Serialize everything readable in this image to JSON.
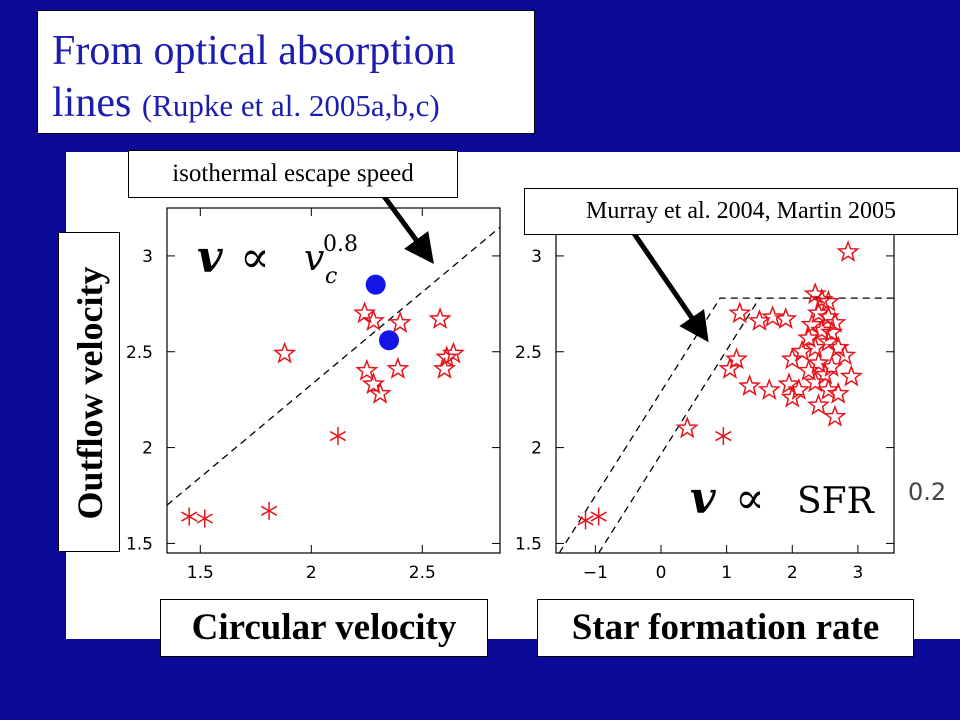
{
  "slide": {
    "title_main": "From optical absorption",
    "title_line2_main": "lines",
    "title_line2_ref": "(Rupke et al. 2005a,b,c)",
    "bg_color": "#0a0a96",
    "title_color": "#1c1cb0"
  },
  "annotations": {
    "escape_speed": "isothermal escape speed",
    "murray_martin": "Murray et al. 2004, Martin 2005"
  },
  "axis_labels": {
    "y": "Outflow velocity",
    "x_left": "Circular velocity",
    "x_right": "Star formation rate"
  },
  "formulas": {
    "left": {
      "lhs": "v",
      "prop": "∝",
      "var": "v",
      "sub": "c",
      "exp": "0.8"
    },
    "right": {
      "lhs": "v",
      "prop": "∝",
      "var": "SFR",
      "exp": "0.2"
    }
  },
  "chart_data": [
    {
      "type": "scatter",
      "title": "",
      "xlabel": "Circular velocity",
      "ylabel": "Outflow velocity",
      "xlim": [
        1.35,
        2.85
      ],
      "ylim": [
        1.45,
        3.25
      ],
      "xticks": [
        "1.5",
        "2",
        "2.5"
      ],
      "yticks": [
        "1.5",
        "2",
        "2.5",
        "3"
      ],
      "marker_color": "#e8141c",
      "fit_color": "#1414e6",
      "series": [
        {
          "marker": "star",
          "points": [
            [
              1.88,
              2.49
            ],
            [
              2.24,
              2.7
            ],
            [
              2.28,
              2.66
            ],
            [
              2.4,
              2.65
            ],
            [
              2.58,
              2.67
            ],
            [
              2.25,
              2.4
            ],
            [
              2.28,
              2.33
            ],
            [
              2.39,
              2.41
            ],
            [
              2.31,
              2.28
            ],
            [
              2.6,
              2.41
            ],
            [
              2.61,
              2.47
            ],
            [
              2.64,
              2.49
            ]
          ]
        },
        {
          "marker": "asterisk",
          "points": [
            [
              1.45,
              1.64
            ],
            [
              1.52,
              1.63
            ],
            [
              1.81,
              1.67
            ],
            [
              2.12,
              2.06
            ]
          ]
        },
        {
          "marker": "filled-circle",
          "points": [
            [
              2.29,
              2.85
            ],
            [
              2.35,
              2.56
            ]
          ]
        }
      ],
      "reference_line": {
        "style": "dashed",
        "points": [
          [
            1.35,
            1.7
          ],
          [
            2.85,
            3.15
          ]
        ]
      }
    },
    {
      "type": "scatter",
      "title": "",
      "xlabel": "Star formation rate",
      "ylabel": "Outflow velocity",
      "xlim": [
        -1.6,
        3.55
      ],
      "ylim": [
        1.45,
        3.25
      ],
      "xticks": [
        "−1",
        "0",
        "1",
        "2",
        "3"
      ],
      "yticks": [
        "1.5",
        "2",
        "2.5",
        "3"
      ],
      "marker_color": "#e8141c",
      "series": [
        {
          "marker": "star",
          "points": [
            [
              2.85,
              3.02
            ],
            [
              2.35,
              2.8
            ],
            [
              2.45,
              2.77
            ],
            [
              2.55,
              2.76
            ],
            [
              2.4,
              2.7
            ],
            [
              2.55,
              2.68
            ],
            [
              2.65,
              2.65
            ],
            [
              2.3,
              2.64
            ],
            [
              2.45,
              2.61
            ],
            [
              2.6,
              2.6
            ],
            [
              2.25,
              2.57
            ],
            [
              2.55,
              2.55
            ],
            [
              2.35,
              2.52
            ],
            [
              2.7,
              2.52
            ],
            [
              2.15,
              2.5
            ],
            [
              2.8,
              2.48
            ],
            [
              2.0,
              2.46
            ],
            [
              2.4,
              2.44
            ],
            [
              2.6,
              2.42
            ],
            [
              2.25,
              2.4
            ],
            [
              2.5,
              2.38
            ],
            [
              2.9,
              2.37
            ],
            [
              2.35,
              2.34
            ],
            [
              2.1,
              2.3
            ],
            [
              2.55,
              2.3
            ],
            [
              2.7,
              2.28
            ],
            [
              2.0,
              2.26
            ],
            [
              2.4,
              2.22
            ],
            [
              2.65,
              2.16
            ],
            [
              1.2,
              2.7
            ],
            [
              1.5,
              2.66
            ],
            [
              1.7,
              2.68
            ],
            [
              1.9,
              2.67
            ],
            [
              1.15,
              2.46
            ],
            [
              1.05,
              2.41
            ],
            [
              1.35,
              2.32
            ],
            [
              1.65,
              2.3
            ],
            [
              1.95,
              2.33
            ],
            [
              0.4,
              2.1
            ]
          ]
        },
        {
          "marker": "asterisk",
          "points": [
            [
              -1.15,
              1.62
            ],
            [
              -0.95,
              1.64
            ],
            [
              0.95,
              2.06
            ]
          ]
        }
      ],
      "reference_lines": [
        {
          "style": "dashed",
          "points": [
            [
              -1.55,
              1.45
            ],
            [
              0.9,
              2.78
            ],
            [
              3.55,
              2.78
            ]
          ]
        },
        {
          "style": "dashed",
          "points": [
            [
              -0.95,
              1.45
            ],
            [
              1.5,
              2.78
            ]
          ]
        }
      ]
    }
  ]
}
